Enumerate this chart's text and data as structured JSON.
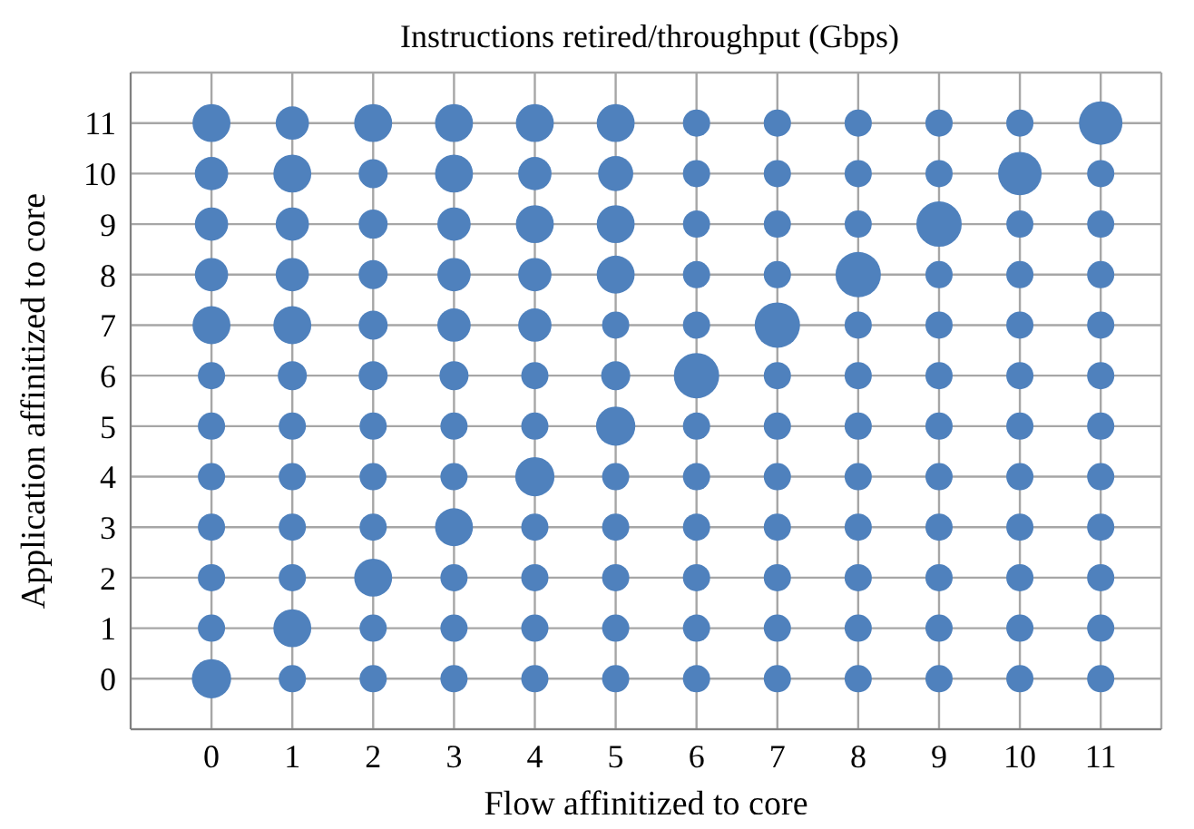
{
  "chart_data": {
    "type": "bubble",
    "title": "Instructions retired/throughput (Gbps)",
    "xlabel": "Flow affinitized to core",
    "ylabel": "Application affinitized to core",
    "xlim": [
      -1,
      11.75
    ],
    "xticks": [
      0,
      1,
      2,
      3,
      4,
      5,
      6,
      7,
      8,
      9,
      10,
      11
    ],
    "ylim": [
      -1,
      12
    ],
    "yticks": [
      0,
      1,
      2,
      3,
      4,
      5,
      6,
      7,
      8,
      9,
      10,
      11
    ],
    "grid": true,
    "legend": false,
    "series": [
      {
        "color": "#4f81bd",
        "x": [
          0,
          1,
          2,
          3,
          4,
          5,
          6,
          7,
          8,
          9,
          10,
          11,
          0,
          1,
          2,
          3,
          4,
          5,
          6,
          7,
          8,
          9,
          10,
          11,
          0,
          1,
          2,
          3,
          4,
          5,
          6,
          7,
          8,
          9,
          10,
          11,
          0,
          1,
          2,
          3,
          4,
          5,
          6,
          7,
          8,
          9,
          10,
          11,
          0,
          1,
          2,
          3,
          4,
          5,
          6,
          7,
          8,
          9,
          10,
          11,
          0,
          1,
          2,
          3,
          4,
          5,
          6,
          7,
          8,
          9,
          10,
          11,
          0,
          1,
          2,
          3,
          4,
          5,
          6,
          7,
          8,
          9,
          10,
          11,
          0,
          1,
          2,
          3,
          4,
          5,
          6,
          7,
          8,
          9,
          10,
          11,
          0,
          1,
          2,
          3,
          4,
          5,
          6,
          7,
          8,
          9,
          10,
          11,
          0,
          1,
          2,
          3,
          4,
          5,
          6,
          7,
          8,
          9,
          10,
          11,
          0,
          1,
          2,
          3,
          4,
          5,
          6,
          7,
          8,
          9,
          10,
          11,
          0,
          1,
          2,
          3,
          4,
          5,
          6,
          7,
          8,
          9,
          10,
          11
        ],
        "values": [
          0,
          0,
          0,
          0,
          0,
          0,
          0,
          0,
          0,
          0,
          0,
          0,
          1,
          1,
          1,
          1,
          1,
          1,
          1,
          1,
          1,
          1,
          1,
          1,
          2,
          2,
          2,
          2,
          2,
          2,
          2,
          2,
          2,
          2,
          2,
          2,
          3,
          3,
          3,
          3,
          3,
          3,
          3,
          3,
          3,
          3,
          3,
          3,
          4,
          4,
          4,
          4,
          4,
          4,
          4,
          4,
          4,
          4,
          4,
          4,
          5,
          5,
          5,
          5,
          5,
          5,
          5,
          5,
          5,
          5,
          5,
          5,
          6,
          6,
          6,
          6,
          6,
          6,
          6,
          6,
          6,
          6,
          6,
          6,
          7,
          7,
          7,
          7,
          7,
          7,
          7,
          7,
          7,
          7,
          7,
          7,
          8,
          8,
          8,
          8,
          8,
          8,
          8,
          8,
          8,
          8,
          8,
          8,
          9,
          9,
          9,
          9,
          9,
          9,
          9,
          9,
          9,
          9,
          9,
          9,
          10,
          10,
          10,
          10,
          10,
          10,
          10,
          10,
          10,
          10,
          10,
          10,
          11,
          11,
          11,
          11,
          11,
          11,
          11,
          11,
          11,
          11,
          11,
          11
        ],
        "sizes": [
          0.75,
          0.36,
          0.36,
          0.36,
          0.36,
          0.36,
          0.36,
          0.36,
          0.36,
          0.36,
          0.36,
          0.36,
          0.36,
          0.7,
          0.36,
          0.36,
          0.36,
          0.36,
          0.36,
          0.36,
          0.36,
          0.36,
          0.36,
          0.36,
          0.36,
          0.36,
          0.7,
          0.36,
          0.36,
          0.36,
          0.36,
          0.36,
          0.36,
          0.36,
          0.36,
          0.36,
          0.36,
          0.36,
          0.36,
          0.7,
          0.36,
          0.36,
          0.36,
          0.36,
          0.36,
          0.36,
          0.36,
          0.36,
          0.36,
          0.36,
          0.36,
          0.36,
          0.75,
          0.36,
          0.36,
          0.36,
          0.36,
          0.36,
          0.36,
          0.36,
          0.36,
          0.36,
          0.36,
          0.36,
          0.36,
          0.75,
          0.36,
          0.36,
          0.36,
          0.36,
          0.36,
          0.36,
          0.36,
          0.41,
          0.41,
          0.41,
          0.36,
          0.41,
          1,
          0.36,
          0.36,
          0.36,
          0.36,
          0.36,
          0.7,
          0.7,
          0.41,
          0.54,
          0.54,
          0.36,
          0.36,
          1,
          0.36,
          0.36,
          0.36,
          0.36,
          0.54,
          0.54,
          0.41,
          0.54,
          0.54,
          0.7,
          0.36,
          0.36,
          1,
          0.36,
          0.36,
          0.36,
          0.54,
          0.54,
          0.41,
          0.54,
          0.7,
          0.7,
          0.36,
          0.36,
          0.36,
          1,
          0.36,
          0.36,
          0.54,
          0.7,
          0.41,
          0.7,
          0.54,
          0.6,
          0.36,
          0.36,
          0.36,
          0.36,
          0.92,
          0.36,
          0.7,
          0.54,
          0.7,
          0.7,
          0.7,
          0.7,
          0.36,
          0.36,
          0.36,
          0.36,
          0.36,
          0.92
        ]
      }
    ]
  }
}
